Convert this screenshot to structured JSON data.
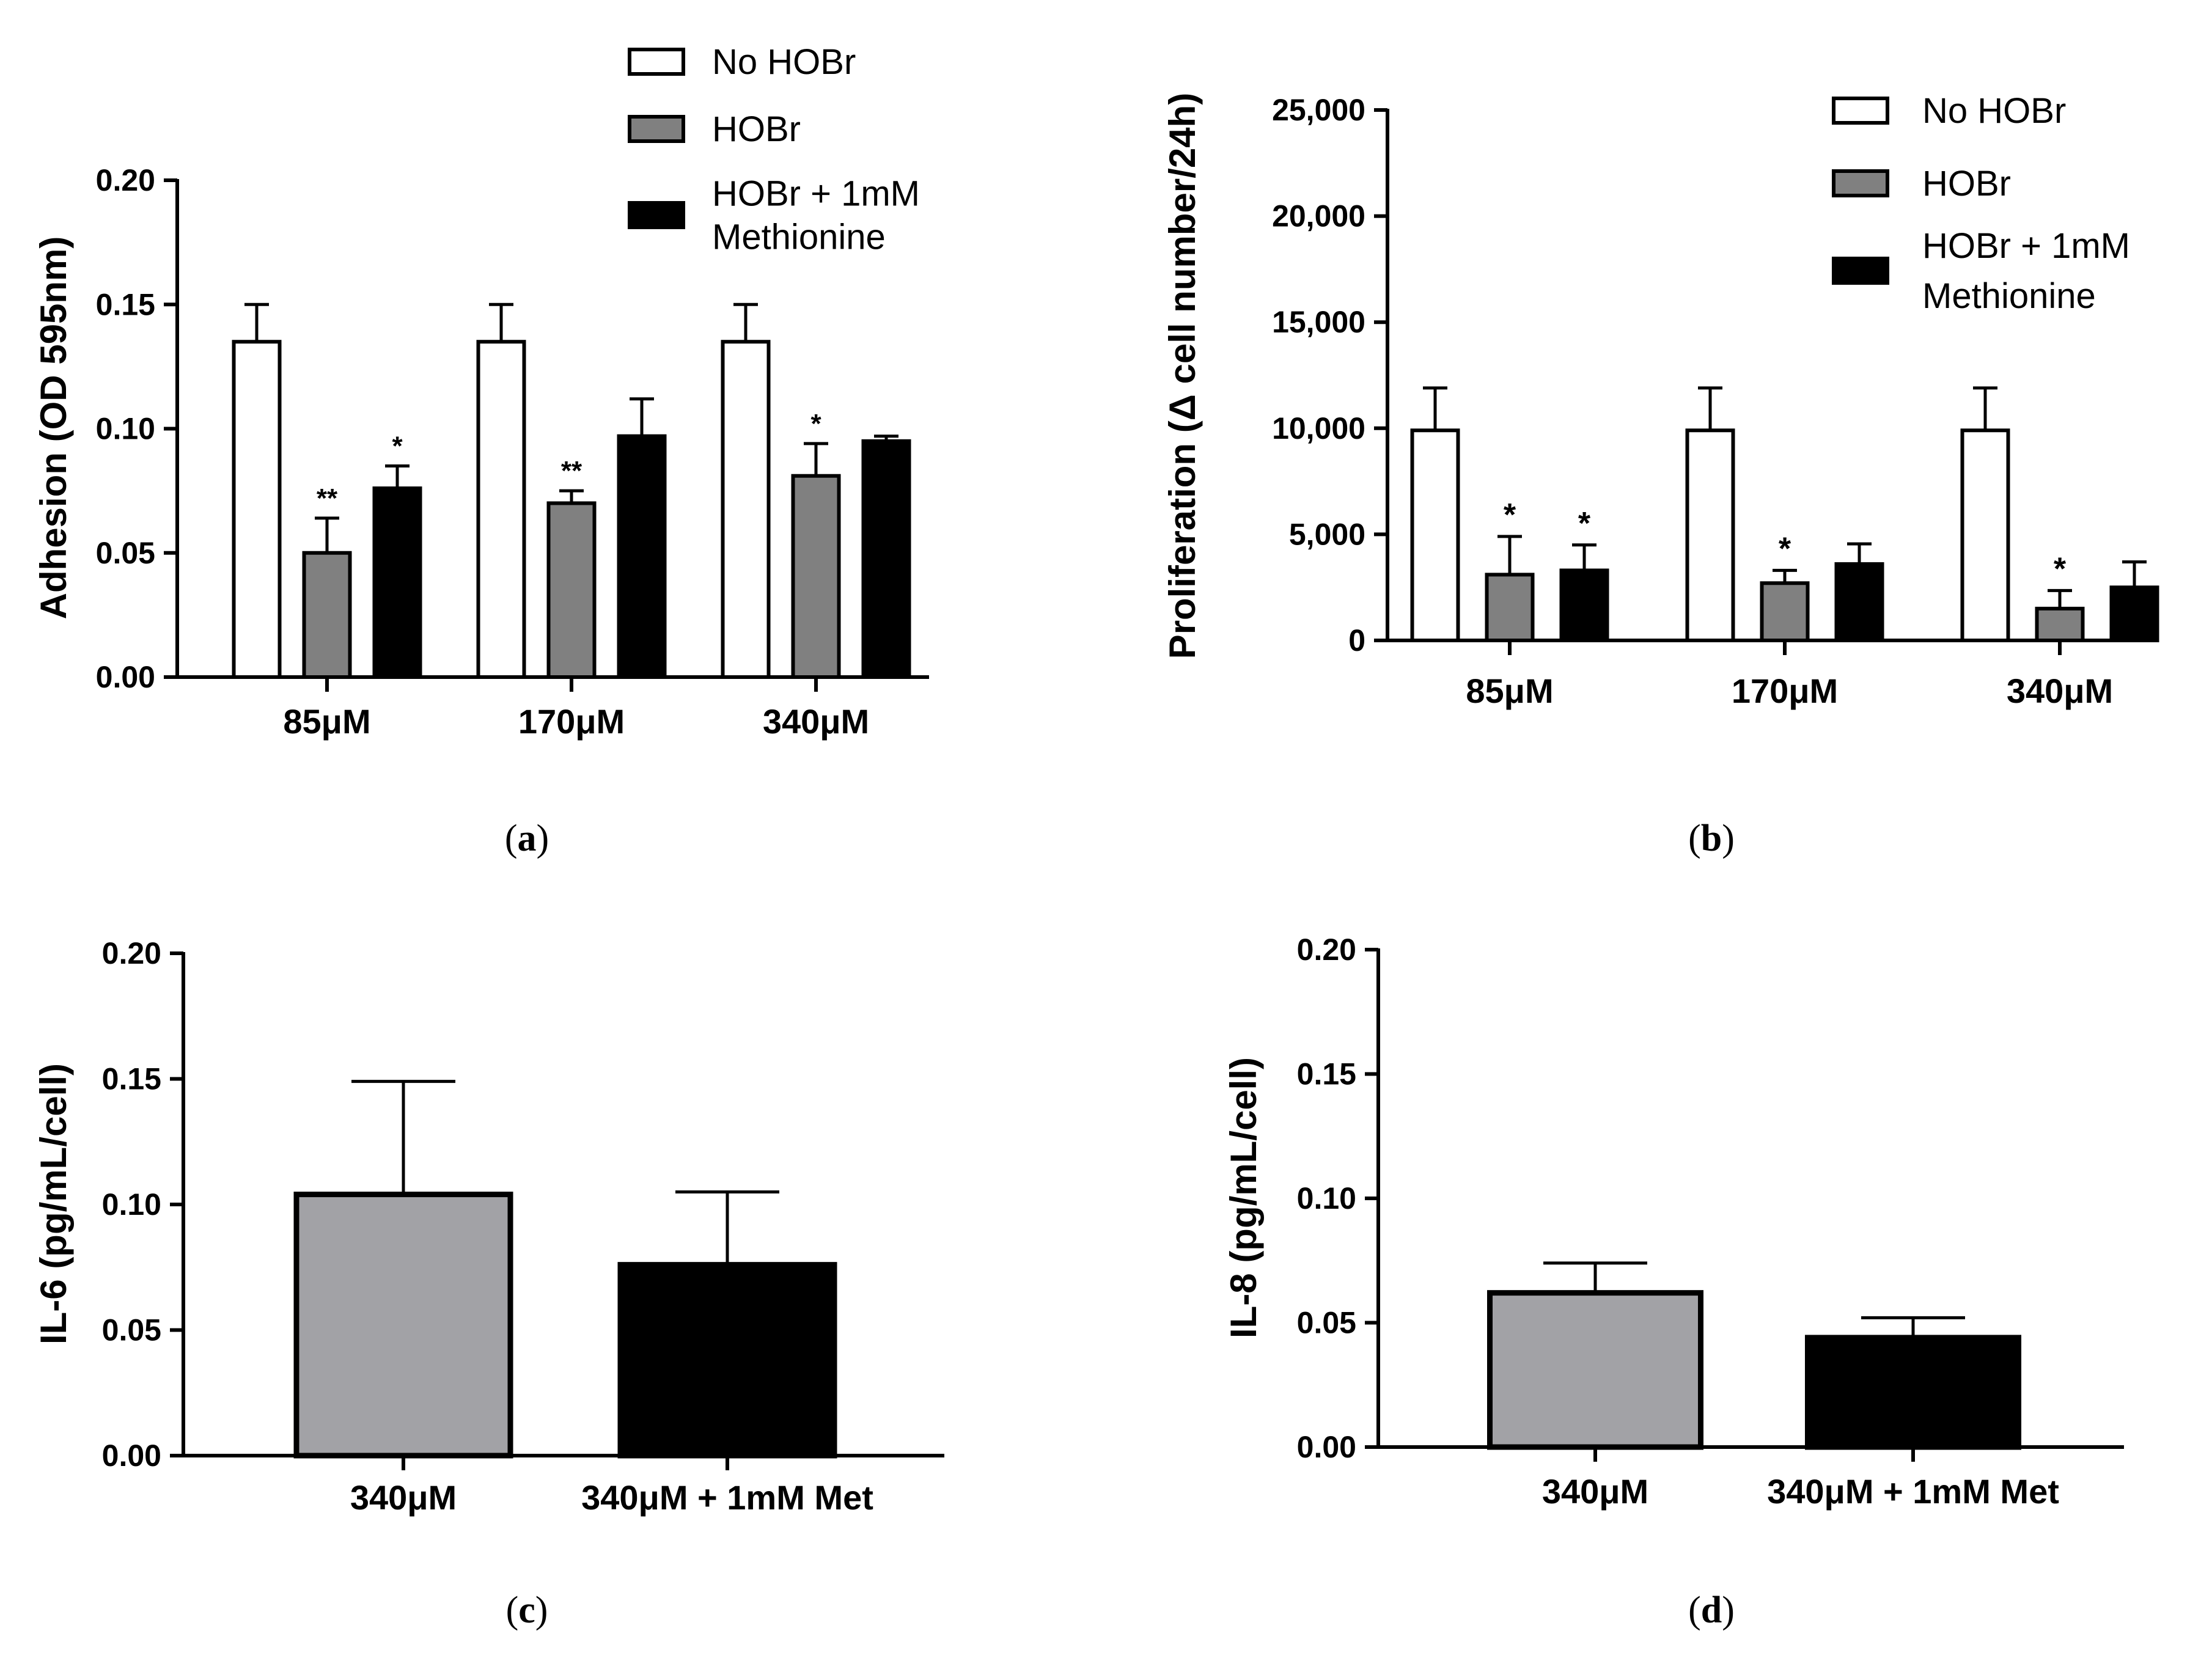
{
  "chart_data": [
    {
      "id": "a",
      "panel_label": "a",
      "type": "bar",
      "ylabel": "Adhesion (OD 595nm)",
      "ylim": [
        0,
        0.2
      ],
      "yticks": [
        "0.00",
        "0.05",
        "0.10",
        "0.15",
        "0.20"
      ],
      "categories": [
        "85μM",
        "170μM",
        "340μM"
      ],
      "series": [
        {
          "name": "No HOBr",
          "color": "#ffffff",
          "values": [
            0.135,
            0.135,
            0.135
          ],
          "errors": [
            0.015,
            0.015,
            0.015
          ],
          "sig": [
            "",
            "",
            ""
          ]
        },
        {
          "name": "HOBr",
          "color": "#808080",
          "values": [
            0.05,
            0.07,
            0.081
          ],
          "errors": [
            0.014,
            0.005,
            0.013
          ],
          "sig": [
            "**",
            "**",
            "*"
          ]
        },
        {
          "name": "HOBr + 1mM Methionine",
          "legend_lines": [
            "HOBr + 1mM",
            "Methionine"
          ],
          "color": "#000000",
          "values": [
            0.076,
            0.097,
            0.095
          ],
          "errors": [
            0.009,
            0.015,
            0.002
          ],
          "sig": [
            "*",
            "",
            ""
          ]
        }
      ]
    },
    {
      "id": "b",
      "panel_label": "b",
      "type": "bar",
      "ylabel": "Proliferation (Δ cell number/24h)",
      "ylim": [
        0,
        25000
      ],
      "yticks": [
        "0",
        "5,000",
        "10,000",
        "15,000",
        "20,000",
        "25,000"
      ],
      "categories": [
        "85μM",
        "170μM",
        "340μM"
      ],
      "series": [
        {
          "name": "No HOBr",
          "color": "#ffffff",
          "values": [
            9900,
            9900,
            9900
          ],
          "errors": [
            2000,
            2000,
            2000
          ],
          "sig": [
            "",
            "",
            ""
          ]
        },
        {
          "name": "HOBr",
          "color": "#808080",
          "values": [
            3100,
            2700,
            1500
          ],
          "errors": [
            1800,
            600,
            850
          ],
          "sig": [
            "*",
            "*",
            "*"
          ]
        },
        {
          "name": "HOBr + 1mM Methionine",
          "legend_lines": [
            "HOBr + 1mM",
            "Methionine"
          ],
          "color": "#000000",
          "values": [
            3300,
            3600,
            2500
          ],
          "errors": [
            1200,
            950,
            1200
          ],
          "sig": [
            "*",
            "",
            ""
          ]
        }
      ]
    },
    {
      "id": "c",
      "panel_label": "c",
      "type": "bar",
      "ylabel": "IL-6 (pg/mL/cell)",
      "ylim": [
        0,
        0.2
      ],
      "yticks": [
        "0.00",
        "0.05",
        "0.10",
        "0.15",
        "0.20"
      ],
      "categories": [
        "340μM",
        "340μM + 1mM Met"
      ],
      "values": [
        0.104,
        0.076
      ],
      "errors": [
        0.045,
        0.029
      ],
      "colors": [
        "#a2a2a6",
        "#000000"
      ]
    },
    {
      "id": "d",
      "panel_label": "d",
      "type": "bar",
      "ylabel": "IL-8 (pg/mL/cell)",
      "ylim": [
        0,
        0.2
      ],
      "yticks": [
        "0.00",
        "0.05",
        "0.10",
        "0.15",
        "0.20"
      ],
      "categories": [
        "340μM",
        "340μM + 1mM Met"
      ],
      "values": [
        0.062,
        0.044
      ],
      "errors": [
        0.012,
        0.008
      ],
      "colors": [
        "#a2a2a6",
        "#000000"
      ]
    }
  ]
}
